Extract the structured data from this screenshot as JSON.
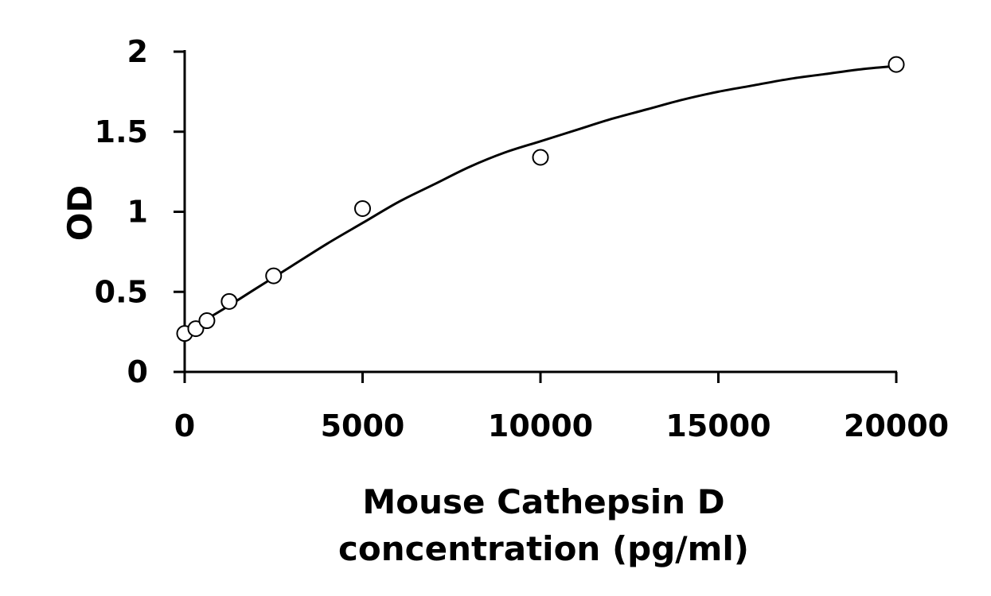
{
  "chart_data": {
    "type": "scatter",
    "xlabel": [
      "Mouse Cathepsin D",
      "concentration (pg/ml)"
    ],
    "ylabel": "OD",
    "xlim": [
      0,
      20000
    ],
    "ylim": [
      0,
      2
    ],
    "xticks": [
      0,
      5000,
      10000,
      15000,
      20000
    ],
    "yticks": [
      0,
      0.5,
      1,
      1.5,
      2
    ],
    "xtick_labels": [
      "0",
      "5000",
      "10000",
      "15000",
      "20000"
    ],
    "ytick_labels": [
      "0",
      "0.5",
      "1",
      "1.5",
      "2"
    ],
    "grid": false,
    "legend": "none",
    "series": [
      {
        "marker": "open-circle",
        "x": [
          0,
          312.5,
          625,
          1250,
          2500,
          5000,
          10000,
          20000
        ],
        "y": [
          0.24,
          0.27,
          0.32,
          0.44,
          0.6,
          1.02,
          1.34,
          1.92
        ]
      }
    ],
    "fit_curve": {
      "style": "solid-black",
      "x": [
        0,
        1000,
        2000,
        3000,
        4000,
        5000,
        6000,
        7000,
        8000,
        9000,
        10000,
        11000,
        12000,
        13000,
        14000,
        15000,
        16000,
        17000,
        18000,
        19000,
        20000
      ],
      "y": [
        0.25,
        0.38,
        0.52,
        0.66,
        0.8,
        0.93,
        1.06,
        1.17,
        1.28,
        1.37,
        1.44,
        1.51,
        1.58,
        1.64,
        1.7,
        1.75,
        1.79,
        1.83,
        1.86,
        1.89,
        1.91
      ]
    },
    "colors": {
      "axis": "#000000",
      "marker_stroke": "#000000",
      "marker_fill": "#ffffff",
      "curve": "#000000"
    }
  }
}
